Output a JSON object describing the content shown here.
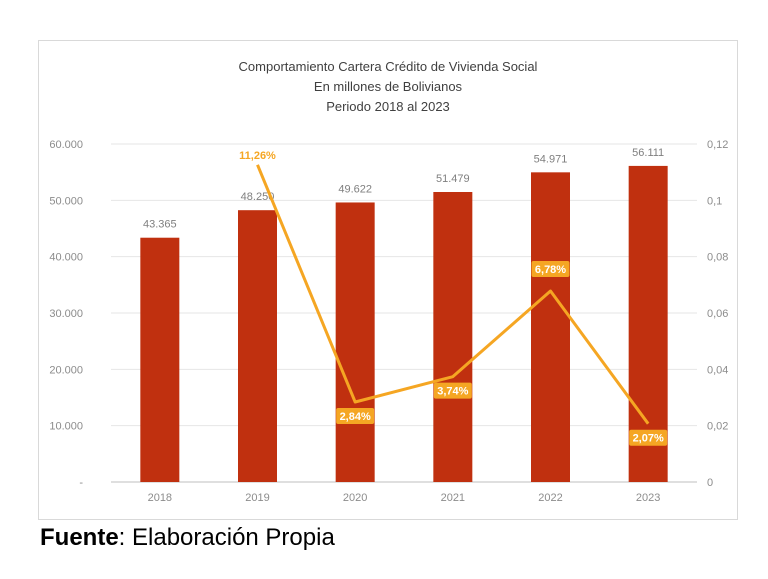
{
  "chart_data": {
    "type": "bar",
    "title_lines": [
      "Comportamiento Cartera Crédito de Vivienda Social",
      "En millones de Bolivianos",
      "Periodo 2018 al 2023"
    ],
    "categories": [
      "2018",
      "2019",
      "2020",
      "2021",
      "2022",
      "2023"
    ],
    "series": [
      {
        "type": "bar",
        "axis": "left",
        "color": "#c0300f",
        "values": [
          43365,
          48250,
          49622,
          51479,
          54971,
          56111
        ],
        "labels": [
          "43.365",
          "48.250",
          "49.622",
          "51.479",
          "54.971",
          "56.111"
        ]
      },
      {
        "type": "line",
        "axis": "right",
        "color": "#f5a623",
        "x": [
          "2019",
          "2020",
          "2021",
          "2022",
          "2023"
        ],
        "values": [
          0.1126,
          0.0284,
          0.0374,
          0.0678,
          0.0207
        ],
        "labels": [
          "11,26%",
          "2,84%",
          "3,74%",
          "6,78%",
          "2,07%"
        ]
      }
    ],
    "y_left": {
      "ylim": [
        0,
        60000
      ],
      "ticks": [
        "-",
        "10.000",
        "20.000",
        "30.000",
        "40.000",
        "50.000",
        "60.000"
      ]
    },
    "y_right": {
      "ylim": [
        0,
        0.12
      ],
      "ticks": [
        "0",
        "0,02",
        "0,04",
        "0,06",
        "0,08",
        "0,1",
        "0,12"
      ]
    },
    "grid": true,
    "legend": "none"
  },
  "footer": {
    "source_label": "Fuente",
    "source_text": ": Elaboración Propia"
  }
}
